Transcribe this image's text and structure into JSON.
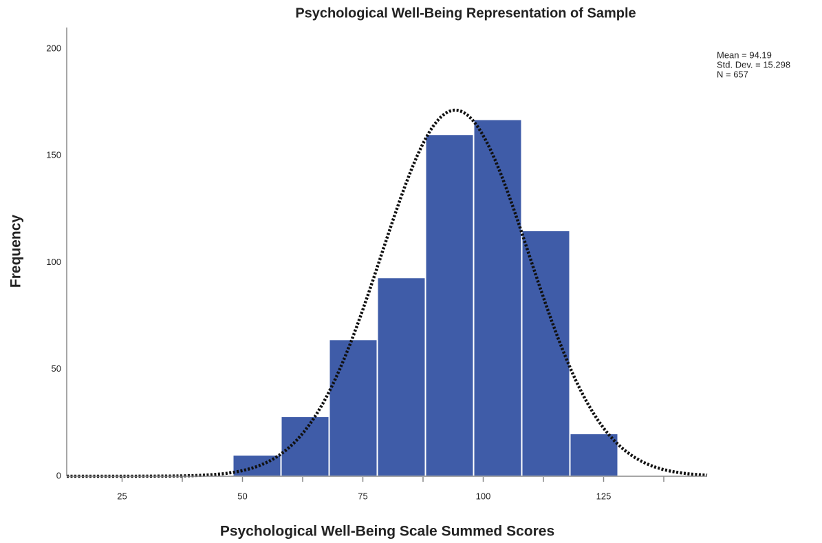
{
  "chart_data": {
    "type": "histogram",
    "title": "Psychological Well-Being Representation of Sample",
    "x_label": "Psychological Well-Being Scale Summed Scores",
    "y_label": "Frequency",
    "bins": [
      48,
      58,
      68,
      78,
      88,
      98,
      108,
      118,
      128
    ],
    "values": [
      10,
      28,
      64,
      93,
      160,
      167,
      115,
      20
    ],
    "color": "#3f5ca8",
    "xlim": [
      13.5,
      146.5
    ],
    "xticks": [
      25,
      50,
      75,
      100,
      125
    ],
    "xticks_minor": [
      37.5,
      62.5,
      87.5,
      112.5,
      137.5
    ],
    "ylim": [
      0,
      210
    ],
    "yticks": [
      0,
      50,
      100,
      150,
      200
    ],
    "normal_curve": {
      "mean": 94.19,
      "sd": 15.298,
      "n": 657
    },
    "annotations": [
      "Mean = 94.19",
      "Std. Dev. = 15.298",
      "N = 657"
    ]
  }
}
